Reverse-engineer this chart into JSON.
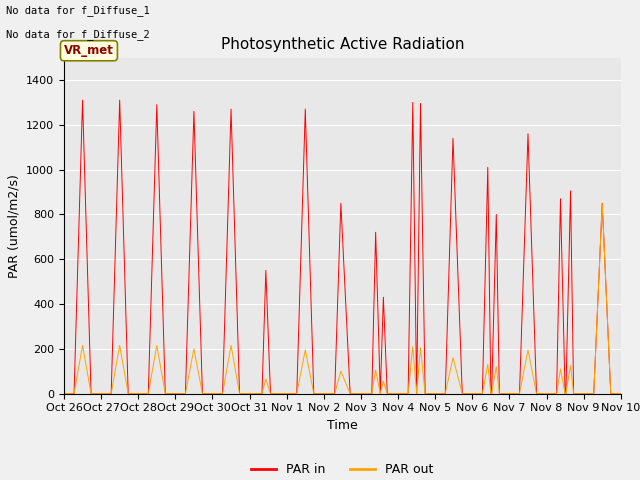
{
  "title": "Photosynthetic Active Radiation",
  "xlabel": "Time",
  "ylabel": "PAR (umol/m2/s)",
  "ylim": [
    0,
    1500
  ],
  "yticks": [
    0,
    200,
    400,
    600,
    800,
    1000,
    1200,
    1400
  ],
  "xtick_labels": [
    "Oct 26",
    "Oct 27",
    "Oct 28",
    "Oct 29",
    "Oct 30",
    "Oct 31",
    "Nov 1",
    "Nov 2",
    "Nov 3",
    "Nov 4",
    "Nov 5",
    "Nov 6",
    "Nov 7",
    "Nov 8",
    "Nov 9",
    "Nov 10"
  ],
  "color_par_in": "#ff0000",
  "color_par_out": "#ffa500",
  "legend_label_in": "PAR in",
  "legend_label_out": "PAR out",
  "annotation_text1": "No data for f_Diffuse_1",
  "annotation_text2": "No data for f_Diffuse_2",
  "box_label": "VR_met",
  "plot_bg_color": "#e8e8e8",
  "fig_bg_color": "#f0f0f0",
  "grid_color": "#ffffff",
  "title_fontsize": 11,
  "label_fontsize": 9,
  "tick_fontsize": 8
}
